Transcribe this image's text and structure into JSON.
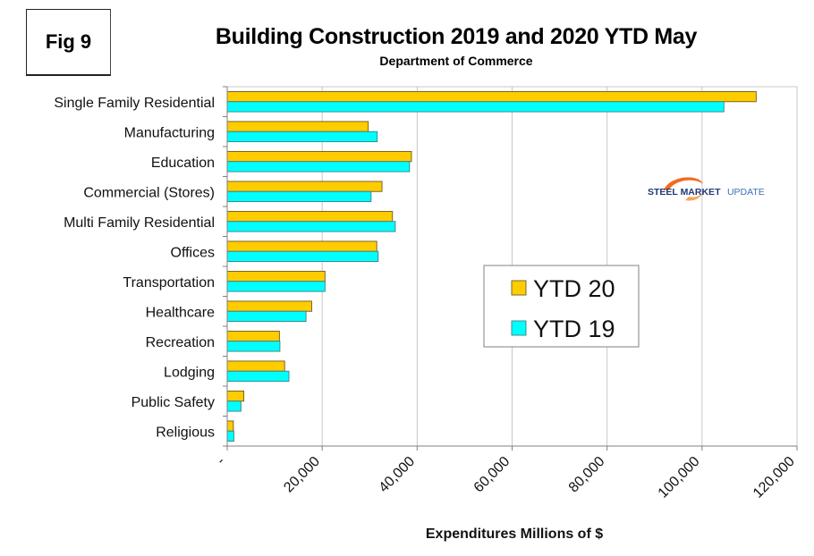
{
  "figure_label": "Fig 9",
  "logo": {
    "bold": "STEEL MARKET",
    "light": "UPDATE",
    "swoosh_color": "#f26b1d"
  },
  "colors": {
    "ytd20": "#ffcc00",
    "ytd19": "#00ffff",
    "grid": "#c8c8c8",
    "bar_border": "#555555"
  },
  "chart_data": {
    "type": "bar",
    "orientation": "horizontal",
    "title": "Building Construction 2019 and 2020 YTD May",
    "subtitle": "Department of Commerce",
    "xlabel": "Expenditures Millions of $",
    "ylabel": "",
    "xlim": [
      0,
      120000
    ],
    "x_ticks": [
      0,
      20000,
      40000,
      60000,
      80000,
      100000,
      120000
    ],
    "x_tick_labels": [
      "-",
      "20,000",
      "40,000",
      "60,000",
      "80,000",
      "100,000",
      "120,000"
    ],
    "grid": "vertical",
    "legend_position": "center-right",
    "categories": [
      "Single Family Residential",
      "Manufacturing",
      "Education",
      "Commercial (Stores)",
      "Multi Family Residential",
      "Offices",
      "Transportation",
      "Healthcare",
      "Recreation",
      "Lodging",
      "Public Safety",
      "Religious"
    ],
    "series": [
      {
        "name": "YTD 20",
        "color": "#ffcc00",
        "values": [
          111400,
          29700,
          38800,
          32600,
          34800,
          31500,
          20600,
          17800,
          11000,
          12100,
          3500,
          1300
        ]
      },
      {
        "name": "YTD 19",
        "color": "#00ffff",
        "values": [
          104600,
          31600,
          38400,
          30300,
          35400,
          31800,
          20600,
          16600,
          11100,
          13000,
          2900,
          1400
        ]
      }
    ]
  }
}
